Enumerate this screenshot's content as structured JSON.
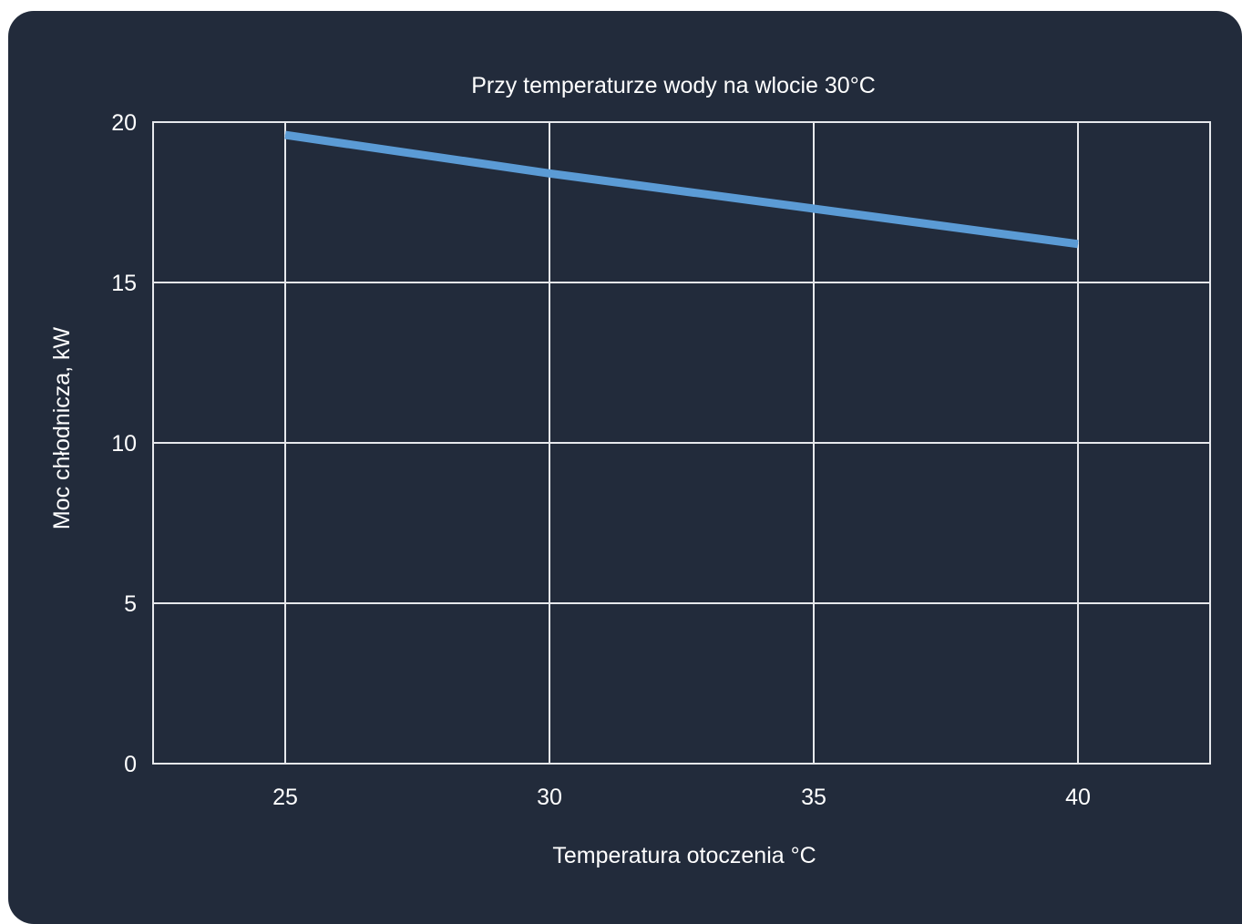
{
  "chart_data": {
    "type": "line",
    "title": "Przy temperaturze wody na wlocie 30°C",
    "xlabel": "Temperatura otoczenia °C",
    "ylabel": "Moc chłodnicza, kW",
    "xlim": [
      22.5,
      42.5
    ],
    "ylim": [
      0,
      20
    ],
    "x_ticks": [
      "25",
      "30",
      "35",
      "40"
    ],
    "y_ticks": [
      "0",
      "5",
      "10",
      "15",
      "20"
    ],
    "grid": true,
    "series": [
      {
        "x": [
          25,
          30,
          35,
          40
        ],
        "values": [
          19.6,
          18.4,
          17.3,
          16.2
        ]
      }
    ],
    "colors": {
      "background": "#222b3b",
      "grid": "#e6e8ec",
      "line": "#5b9bd5",
      "text": "#ffffff"
    }
  }
}
